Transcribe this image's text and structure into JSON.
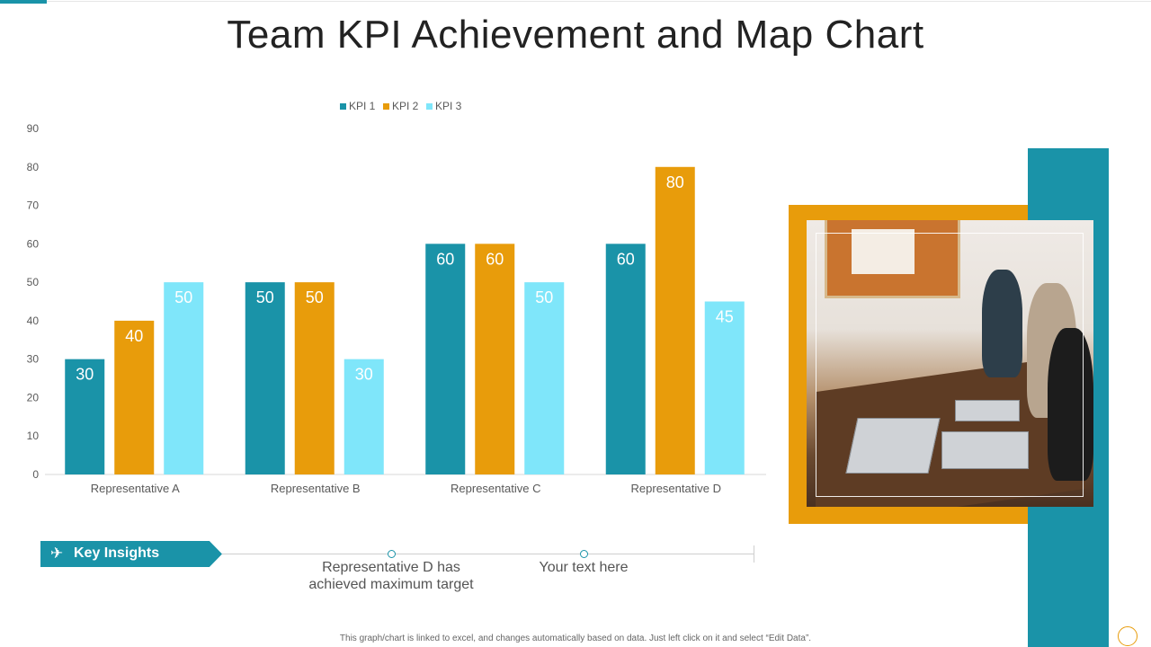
{
  "title": "Team KPI Achievement and Map Chart",
  "colors": {
    "kpi1": "#1a93a8",
    "kpi2": "#e89c0b",
    "kpi3": "#7fe6fa",
    "accent": "#1a93a8"
  },
  "chart_data": {
    "type": "bar",
    "categories": [
      "Representative A",
      "Representative B",
      "Representative C",
      "Representative D"
    ],
    "series": [
      {
        "name": "KPI 1",
        "values": [
          30,
          50,
          60,
          60
        ]
      },
      {
        "name": "KPI 2",
        "values": [
          40,
          50,
          60,
          80
        ]
      },
      {
        "name": "KPI 3",
        "values": [
          50,
          30,
          50,
          45
        ]
      }
    ],
    "ylim": [
      0,
      90
    ],
    "yticks": [
      0,
      10,
      20,
      30,
      40,
      50,
      60,
      70,
      80,
      90
    ],
    "legend": "top",
    "grid": false,
    "data_labels": true
  },
  "insights": {
    "label": "Key Insights",
    "icon": "rocket-icon",
    "items": [
      {
        "line1": "Representative  D has",
        "line2": "achieved maximum target"
      },
      {
        "line1": "Your text here",
        "line2": ""
      }
    ]
  },
  "footnote": "This graph/chart is linked to excel, and changes automatically based on data. Just left click on it and select “Edit Data”."
}
